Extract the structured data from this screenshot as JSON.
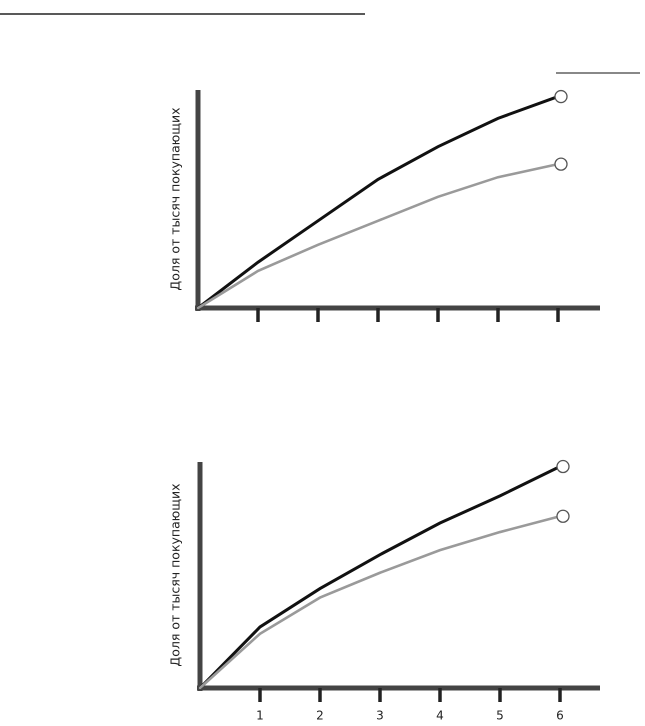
{
  "chart_data": [
    {
      "type": "line",
      "y_label": "Доля от тысяч покупающих",
      "x": [
        0,
        1,
        2,
        3,
        4,
        5,
        6
      ],
      "xlim": [
        0,
        6.7
      ],
      "xticks": [
        1,
        2,
        3,
        4,
        5,
        6
      ],
      "xtick_labels": false,
      "ylim": [
        0,
        100
      ],
      "series": [
        {
          "color": "#111111",
          "values": [
            0,
            21,
            40,
            59,
            74,
            87,
            97
          ]
        },
        {
          "color": "#9a9a9a",
          "values": [
            0,
            17,
            29,
            40,
            51,
            60,
            66
          ]
        }
      ]
    },
    {
      "type": "line",
      "y_label": "Доля от тысяч покупающих",
      "x": [
        0,
        1,
        2,
        3,
        4,
        5,
        6
      ],
      "xlim": [
        0,
        6.7
      ],
      "xticks": [
        1,
        2,
        3,
        4,
        5,
        6
      ],
      "xtick_labels": true,
      "ylim": [
        0,
        100
      ],
      "series": [
        {
          "color": "#111111",
          "values": [
            0,
            27,
            44,
            59,
            73,
            85,
            98
          ]
        },
        {
          "color": "#9a9a9a",
          "values": [
            0,
            24,
            40,
            51,
            61,
            69,
            76
          ]
        }
      ]
    }
  ]
}
